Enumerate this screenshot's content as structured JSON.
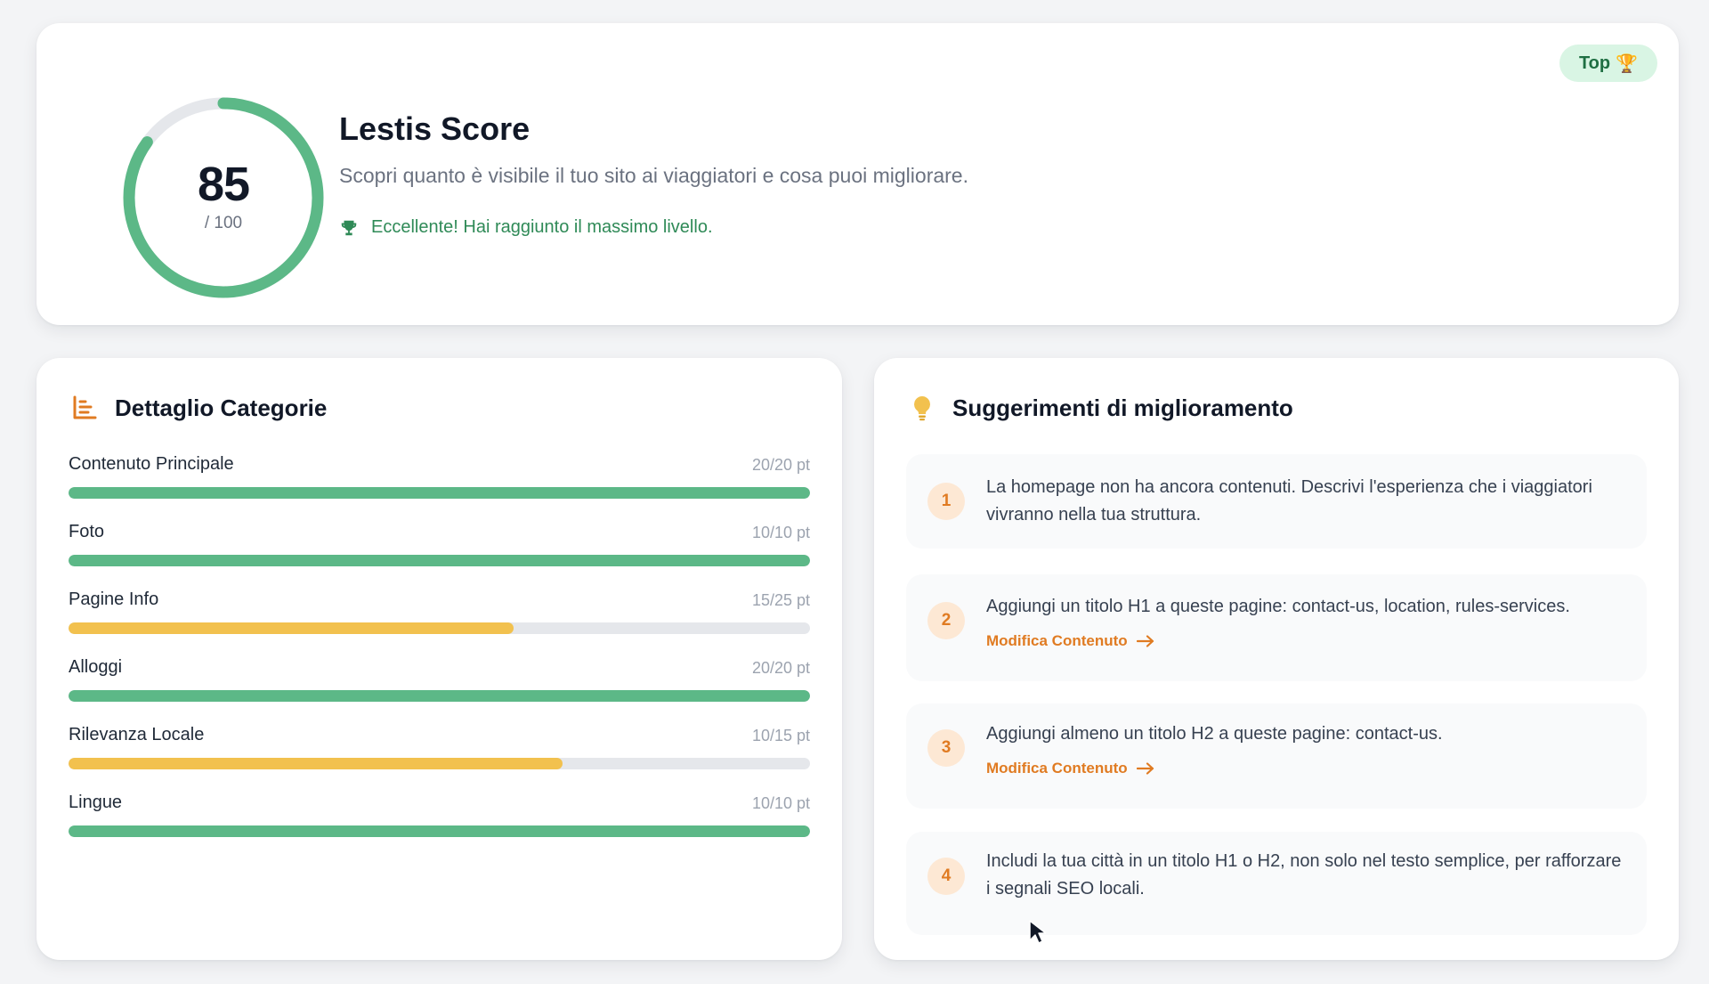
{
  "score": {
    "value": "85",
    "max_label": "/ 100",
    "progress": 0.85,
    "title": "Lestis Score",
    "subtitle": "Scopri quanto è visibile il tuo sito ai viaggiatori e cosa puoi migliorare.",
    "status": "Eccellente! Hai raggiunto il massimo livello.",
    "badge_label": "Top",
    "badge_emoji": "🏆"
  },
  "categories": {
    "title": "Dettaglio Categorie",
    "icon": "bar-chart-icon",
    "items": [
      {
        "name": "Contenuto Principale",
        "points": "20/20 pt",
        "score": 20,
        "max": 20
      },
      {
        "name": "Foto",
        "points": "10/10 pt",
        "score": 10,
        "max": 10
      },
      {
        "name": "Pagine Info",
        "points": "15/25 pt",
        "score": 15,
        "max": 25
      },
      {
        "name": "Alloggi",
        "points": "20/20 pt",
        "score": 20,
        "max": 20
      },
      {
        "name": "Rilevanza Locale",
        "points": "10/15 pt",
        "score": 10,
        "max": 15
      },
      {
        "name": "Lingue",
        "points": "10/10 pt",
        "score": 10,
        "max": 10
      }
    ]
  },
  "suggestions": {
    "title": "Suggerimenti di miglioramento",
    "icon": "lightbulb-icon",
    "items": [
      {
        "number": "1",
        "text": "La homepage non ha ancora contenuti. Descrivi l'esperienza che i viaggiatori vivranno nella tua struttura.",
        "link": ""
      },
      {
        "number": "2",
        "text": "Aggiungi un titolo H1 a queste pagine: contact-us, location, rules-services.",
        "link": "Modifica Contenuto"
      },
      {
        "number": "3",
        "text": "Aggiungi almeno un titolo H2 a queste pagine: contact-us.",
        "link": "Modifica Contenuto"
      },
      {
        "number": "4",
        "text": "Includi la tua città in un titolo H1 o H2, non solo nel testo semplice, per rafforzare i segnali SEO locali.",
        "link": ""
      }
    ]
  },
  "colors": {
    "good": "#5cb887",
    "warning": "#f2c14e",
    "accent": "#e07b22",
    "success_text": "#2f8a57"
  }
}
